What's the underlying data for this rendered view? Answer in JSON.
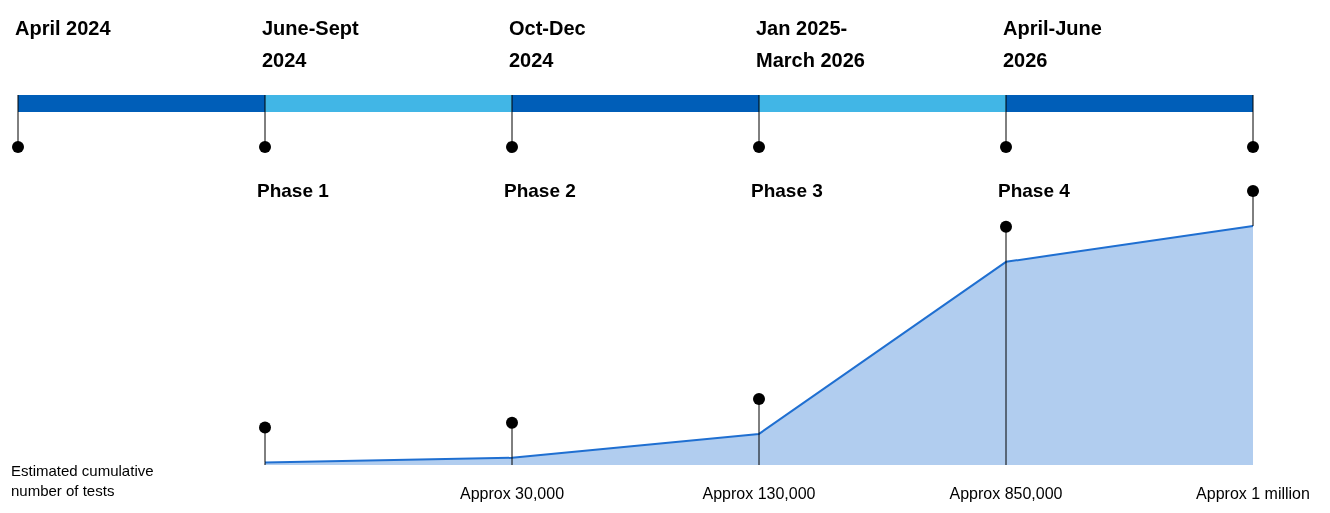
{
  "chart_data": {
    "type": "area",
    "categories": [
      "April 2024",
      "June-Sept 2024",
      "Oct-Dec 2024",
      "Jan 2025-March 2026",
      "April-June 2026",
      null
    ],
    "series": [
      {
        "color": "#1f6fd1",
        "values": [
          null,
          10000,
          30000,
          130000,
          850000,
          1000000
        ],
        "value_labels": [
          null,
          null,
          "Approx 30,000",
          "Approx 130,000",
          "Approx 850,000",
          "Approx 1 million"
        ]
      }
    ],
    "ref_lines": [
      {
        "axis": "x",
        "value": "June-Sept 2024",
        "color": "#000000"
      },
      {
        "axis": "x",
        "value": "Oct-Dec 2024",
        "color": "#000000"
      },
      {
        "axis": "x",
        "value": "Jan 2025-March 2026",
        "color": "#000000"
      },
      {
        "axis": "x",
        "value": "April-June 2026",
        "color": "#000000"
      }
    ],
    "annotations": [
      "Estimated cumulative number of tests",
      "Phase 1",
      "Phase 2",
      "Phase 3",
      "Phase 4"
    ]
  }
}
